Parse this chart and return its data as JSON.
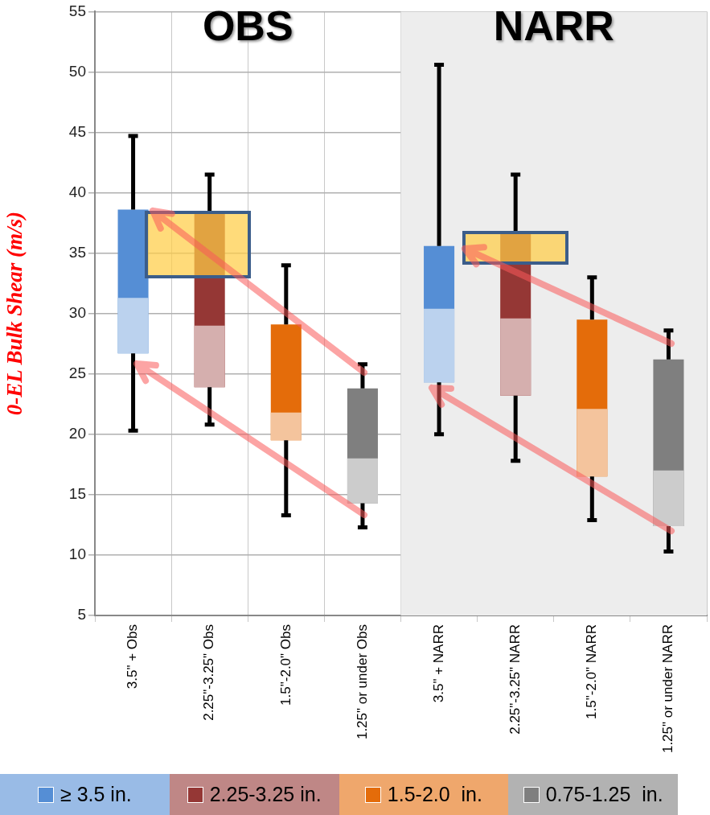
{
  "chart_data": {
    "type": "box",
    "ylabel": "0-EL Bulk Shear (m/s)",
    "categories": [
      "3.5\" + Obs",
      "2.25\"-3.25\" Obs",
      "1.5\"-2.0\" Obs",
      "1.25\" or under Obs",
      "3.5\" + NARR",
      "2.25\"-3.25\" NARR",
      "1.5\"-2.0\" NARR",
      "1.25\" or under NARR"
    ],
    "series": [
      {
        "name": "≥ 3.5 in.",
        "color": "#558ed5",
        "boxes": [
          {
            "low": 20.3,
            "q1": 26.7,
            "median": 31.3,
            "q3": 38.6,
            "high": 44.7
          },
          null,
          null,
          null,
          {
            "low": 20.0,
            "q1": 24.3,
            "median": 30.4,
            "q3": 35.6,
            "high": 50.6
          },
          null,
          null,
          null
        ]
      },
      {
        "name": "2.25-3.25 in.",
        "color": "#953735",
        "boxes": [
          null,
          {
            "low": 20.8,
            "q1": 23.9,
            "median": 29.0,
            "q3": 38.5,
            "high": 41.5
          },
          null,
          null,
          null,
          {
            "low": 17.8,
            "q1": 23.2,
            "median": 29.6,
            "q3": 36.8,
            "high": 41.5
          },
          null,
          null
        ]
      },
      {
        "name": "1.5-2.0  in.",
        "color": "#e46c0a",
        "boxes": [
          null,
          null,
          {
            "low": 13.3,
            "q1": 19.5,
            "median": 21.8,
            "q3": 29.1,
            "high": 34.0
          },
          null,
          null,
          null,
          {
            "low": 12.9,
            "q1": 16.5,
            "median": 22.1,
            "q3": 29.5,
            "high": 33.0
          },
          null
        ]
      },
      {
        "name": "0.75-1.25  in.",
        "color": "#7f7f7f",
        "boxes": [
          null,
          null,
          null,
          {
            "low": 12.3,
            "q1": 14.3,
            "median": 18.0,
            "q3": 23.8,
            "high": 25.8
          },
          null,
          null,
          null,
          {
            "low": 10.3,
            "q1": 12.4,
            "median": 17.0,
            "q3": 26.2,
            "high": 28.6
          }
        ]
      }
    ],
    "ylim": [
      5,
      55
    ],
    "yticks": [
      5,
      10,
      15,
      20,
      25,
      30,
      35,
      40,
      45,
      50,
      55
    ],
    "grid": true,
    "legend": "bottom",
    "bands": [
      {
        "axis": "x",
        "from": "3.5\" + NARR",
        "to": "1.25\" or under NARR",
        "color": "#ededed"
      }
    ],
    "annotations": [
      "OBS",
      "NARR"
    ]
  }
}
